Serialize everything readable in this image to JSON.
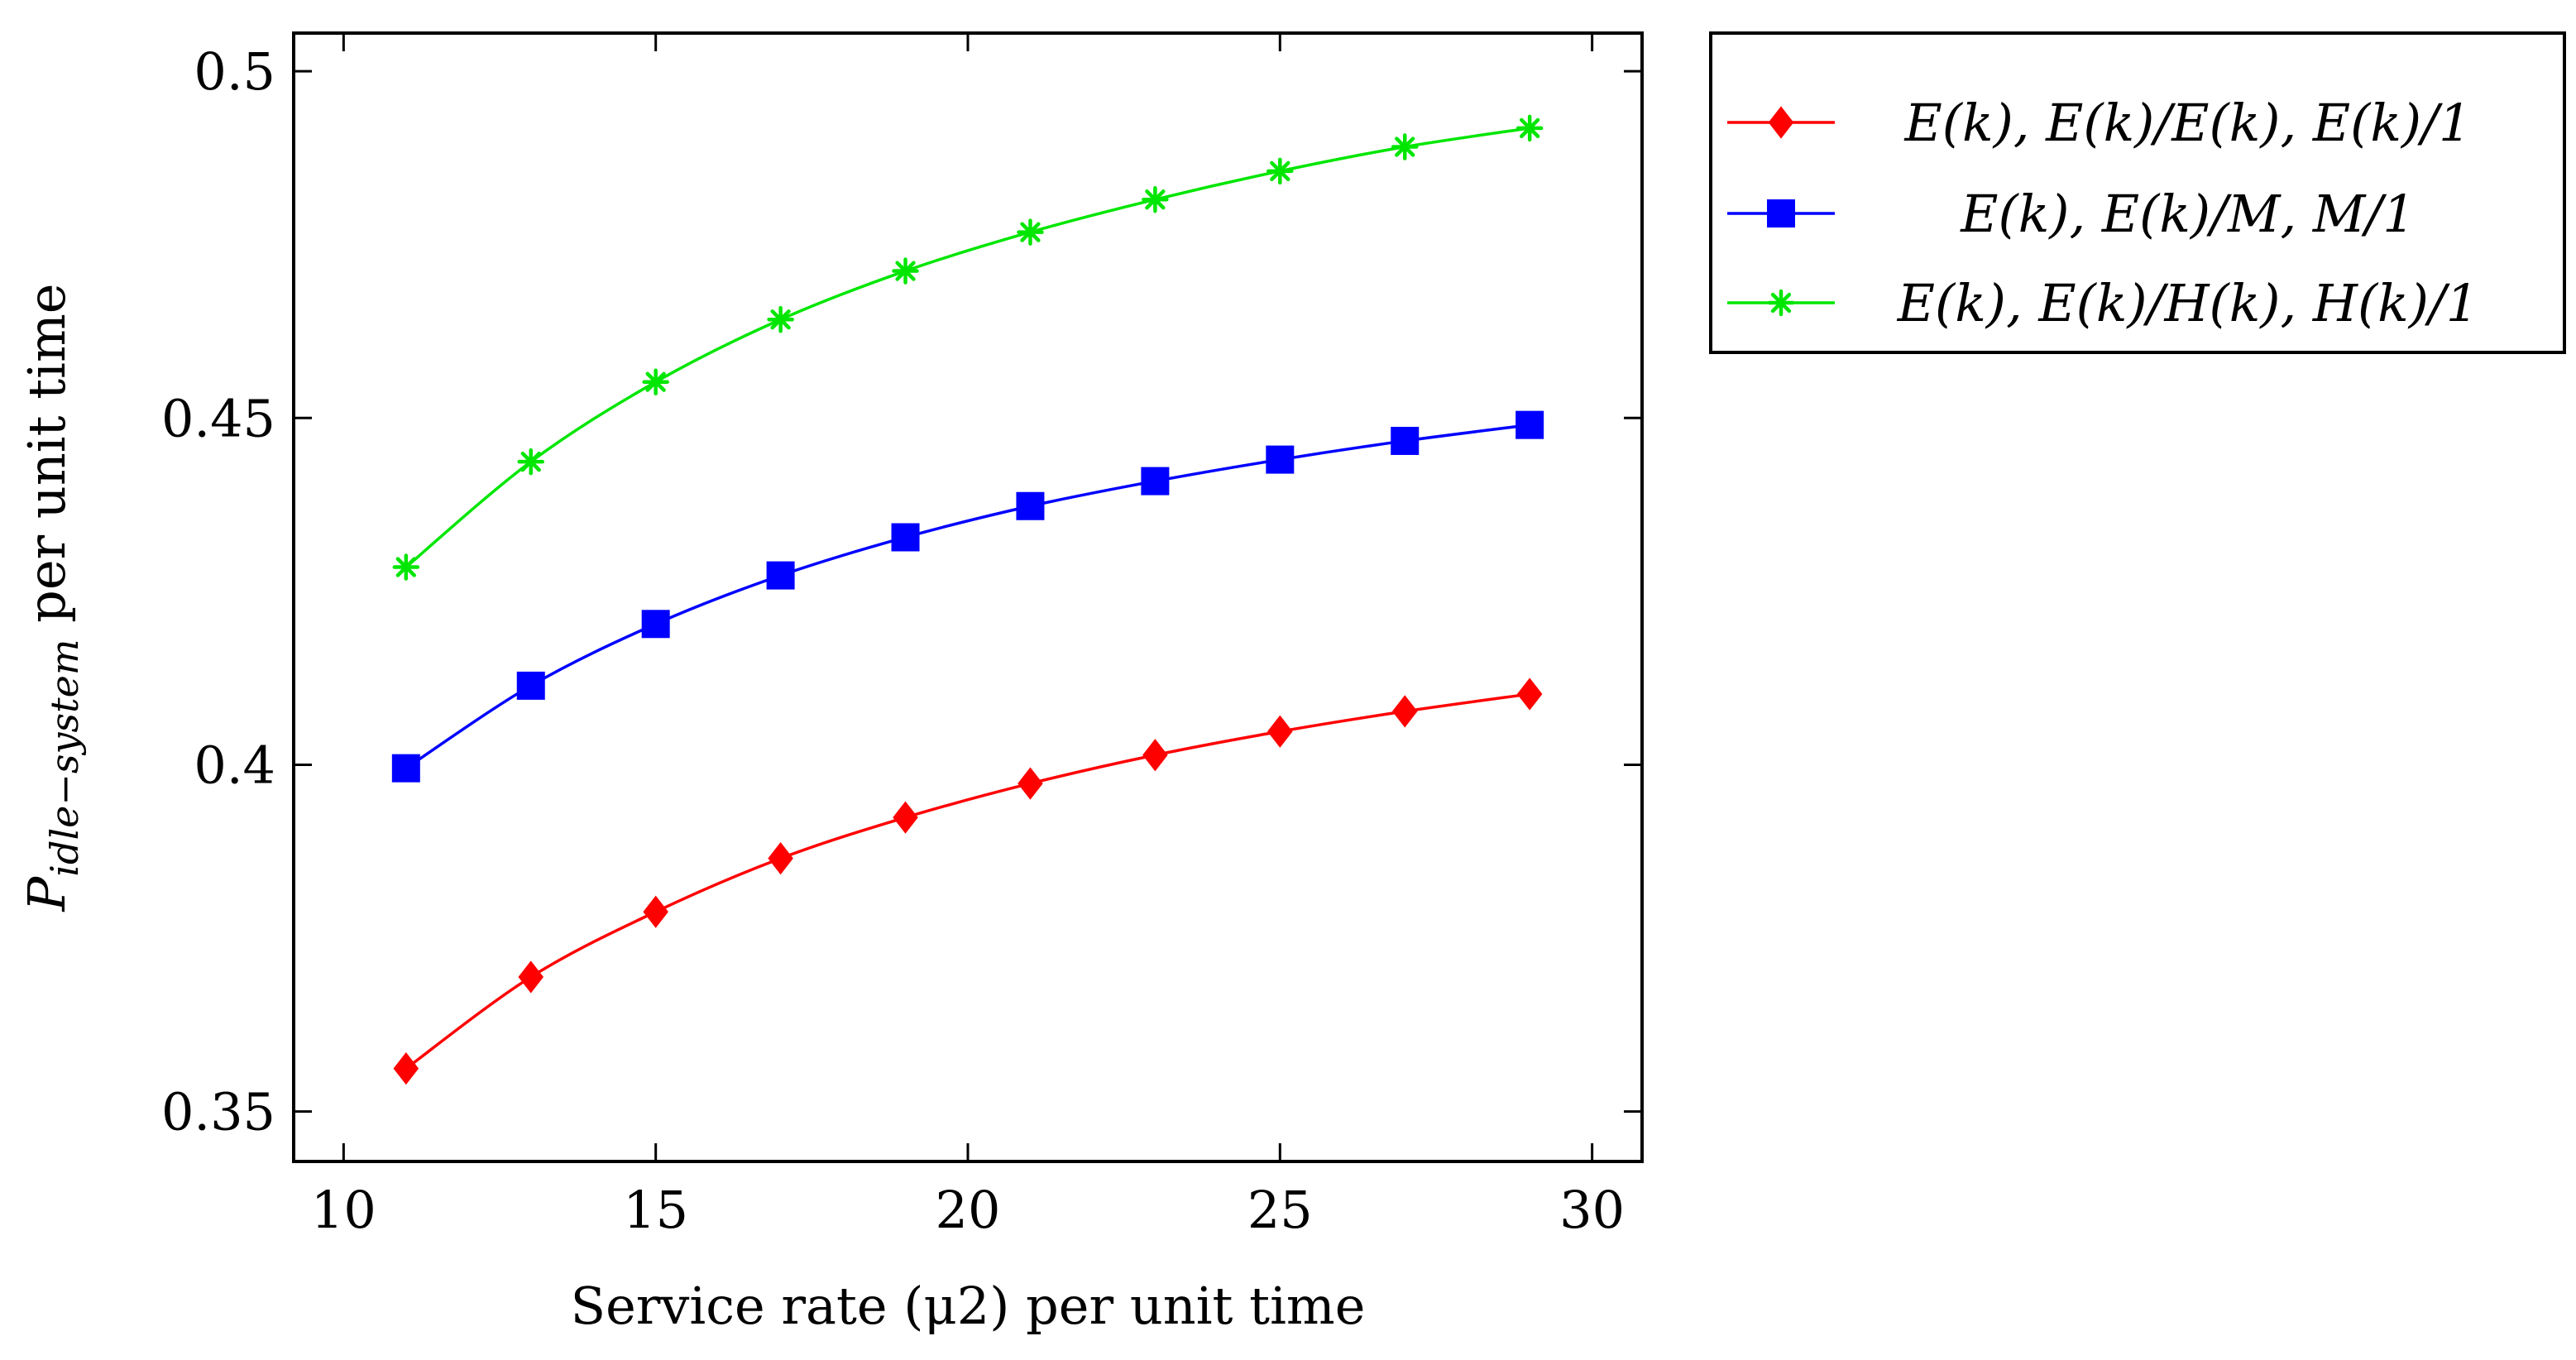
{
  "chart_data": {
    "type": "line",
    "title": "",
    "xlabel": "Service rate (μ2) per unit time",
    "ylabel": "P_idle−system per unit time",
    "ylabel_main": "P",
    "ylabel_sub": "idle−system",
    "ylabel_rest": " per unit time",
    "xlim": [
      9.2,
      30.8
    ],
    "ylim": [
      0.3428,
      0.5055
    ],
    "x_ticks": [
      10,
      15,
      20,
      25,
      30
    ],
    "x_tick_labels": [
      "10",
      "15",
      "20",
      "25",
      "30"
    ],
    "y_ticks": [
      0.35,
      0.4,
      0.45,
      0.5
    ],
    "y_tick_labels": [
      "0.35",
      "0.4",
      "0.45",
      "0.5"
    ],
    "x": [
      11,
      13,
      15,
      17,
      19,
      21,
      23,
      25,
      27,
      29
    ],
    "legend_position": "outside-right-top",
    "series": [
      {
        "name": "E(k), E(k)/E(k), E(k)/1",
        "color": "#ff0000",
        "marker": "diamond",
        "values": [
          0.3562,
          0.3694,
          0.3788,
          0.3865,
          0.3924,
          0.3973,
          0.4014,
          0.4048,
          0.4077,
          0.4102
        ]
      },
      {
        "name": "E(k), E(k)/M, M/1",
        "color": "#0000ff",
        "marker": "square",
        "values": [
          0.3995,
          0.4114,
          0.4203,
          0.4273,
          0.4328,
          0.4373,
          0.4409,
          0.444,
          0.4467,
          0.449
        ]
      },
      {
        "name": "E(k), E(k)/H(k), H(k)/1",
        "color": "#00e600",
        "marker": "asterisk",
        "values": [
          0.4285,
          0.4437,
          0.4552,
          0.4642,
          0.4712,
          0.4768,
          0.4815,
          0.4856,
          0.4891,
          0.4918
        ]
      }
    ]
  }
}
